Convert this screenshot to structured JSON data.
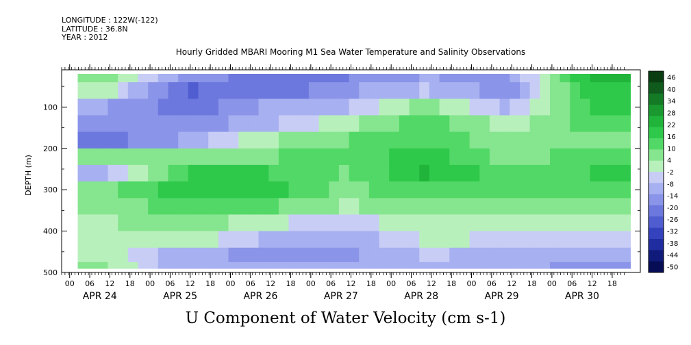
{
  "meta": {
    "longitude": "LONGITUDE : 122W(-122)",
    "latitude": "LATITUDE : 36.8N",
    "year": "YEAR : 2012"
  },
  "chart_data": {
    "type": "heatmap",
    "title": "Hourly Gridded MBARI Mooring M1 Sea Water Temperature and Salinity Observations",
    "xlabel": "",
    "ylabel": "DEPTH (m)",
    "bottom_title": "U Component of Water Velocity (cm s-1)",
    "x": {
      "hour_ticks": [
        "00",
        "06",
        "12",
        "18",
        "00",
        "06",
        "12",
        "18",
        "00",
        "06",
        "12",
        "18",
        "00",
        "06",
        "12",
        "18",
        "00",
        "06",
        "12",
        "18",
        "00",
        "06",
        "12",
        "18",
        "00",
        "06",
        "12",
        "18"
      ],
      "day_labels": [
        "APR 24",
        "APR 25",
        "APR 26",
        "APR 27",
        "APR 28",
        "APR 29",
        "APR 30"
      ],
      "range": [
        "2012-04-23 18:00",
        "2012-04-30 21:00"
      ]
    },
    "y": {
      "ticks": [
        100,
        200,
        300,
        400,
        500
      ],
      "range": [
        500,
        10
      ],
      "reversed": true,
      "units": "m"
    },
    "colorbar": {
      "labels": [
        "46",
        "40",
        "34",
        "28",
        "22",
        "16",
        "10",
        "4",
        "-2",
        "-8",
        "-14",
        "-20",
        "-26",
        "-32",
        "-38",
        "-44",
        "-50"
      ],
      "colors": [
        "#0a3d12",
        "#0f5a1c",
        "#147a26",
        "#19992f",
        "#20b53a",
        "#2ec94a",
        "#52d866",
        "#86e58f",
        "#b8f0bb",
        "#c8cdf6",
        "#a7b0f0",
        "#8a94e8",
        "#6c78dd",
        "#4f5dd0",
        "#3442bd",
        "#1f2da0",
        "#101a7a",
        "#070d55"
      ],
      "range": [
        -50,
        52
      ]
    },
    "depth_profile": {
      "depths": [
        20,
        60,
        100,
        140,
        180,
        220,
        260,
        300,
        340,
        380,
        420,
        460,
        490
      ],
      "u_cm_s": {
        "APR 24": [
          12,
          4,
          -10,
          -12,
          -18,
          8,
          -6,
          10,
          8,
          6,
          6,
          4,
          8
        ],
        "APR 25": [
          -14,
          -22,
          -20,
          -16,
          -10,
          10,
          18,
          22,
          16,
          12,
          6,
          -8,
          -10
        ],
        "APR 26": [
          -18,
          -20,
          -10,
          -6,
          6,
          12,
          18,
          22,
          14,
          2,
          -6,
          -12,
          -8
        ],
        "APR 27": [
          -16,
          -12,
          -6,
          4,
          12,
          14,
          12,
          10,
          6,
          -2,
          -10,
          -12,
          -10
        ],
        "APR 28": [
          -10,
          -4,
          10,
          16,
          18,
          22,
          24,
          18,
          12,
          6,
          2,
          -4,
          -6
        ],
        "APR 29": [
          -12,
          -14,
          -6,
          4,
          8,
          10,
          14,
          16,
          12,
          6,
          0,
          -6,
          -8
        ],
        "APR 30": [
          24,
          22,
          18,
          14,
          12,
          14,
          18,
          16,
          10,
          4,
          -4,
          -10,
          -12
        ]
      }
    }
  }
}
